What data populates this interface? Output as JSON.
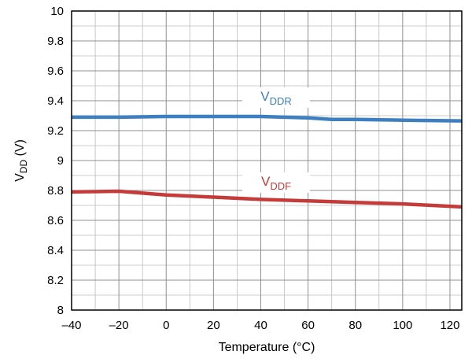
{
  "chart_data": {
    "type": "line",
    "xlabel": "Temperature (°C)",
    "ylabel": {
      "main": "V",
      "sub": "DD",
      "suffix": " (V)"
    },
    "xlim": [
      -40,
      125
    ],
    "ylim": [
      8,
      10
    ],
    "x_ticks": [
      -40,
      -20,
      0,
      20,
      40,
      60,
      80,
      100,
      120
    ],
    "x_tick_labels": [
      "–40",
      "–20",
      "0",
      "20",
      "40",
      "60",
      "80",
      "100",
      "120"
    ],
    "y_ticks": [
      8,
      8.2,
      8.4,
      8.6,
      8.8,
      9,
      9.2,
      9.4,
      9.6,
      9.8,
      10
    ],
    "y_tick_labels": [
      "8",
      "8.2",
      "8.4",
      "8.6",
      "8.8",
      "9",
      "9.2",
      "9.4",
      "9.6",
      "9.8",
      "10"
    ],
    "minor_x_step": 10,
    "minor_y_step": 0.1,
    "grid": true,
    "series": [
      {
        "name": "V_DDR",
        "label_main": "V",
        "label_sub": "DDR",
        "color": "#3d7fc1",
        "x": [
          -40,
          -20,
          0,
          20,
          40,
          60,
          70,
          80,
          100,
          125
        ],
        "y": [
          9.29,
          9.29,
          9.295,
          9.295,
          9.295,
          9.285,
          9.275,
          9.275,
          9.27,
          9.265
        ]
      },
      {
        "name": "V_DDF",
        "label_main": "V",
        "label_sub": "DDF",
        "color": "#c43b3a",
        "x": [
          -40,
          -20,
          0,
          20,
          40,
          60,
          80,
          100,
          125
        ],
        "y": [
          8.79,
          8.795,
          8.77,
          8.755,
          8.74,
          8.73,
          8.72,
          8.71,
          8.69
        ]
      }
    ]
  }
}
